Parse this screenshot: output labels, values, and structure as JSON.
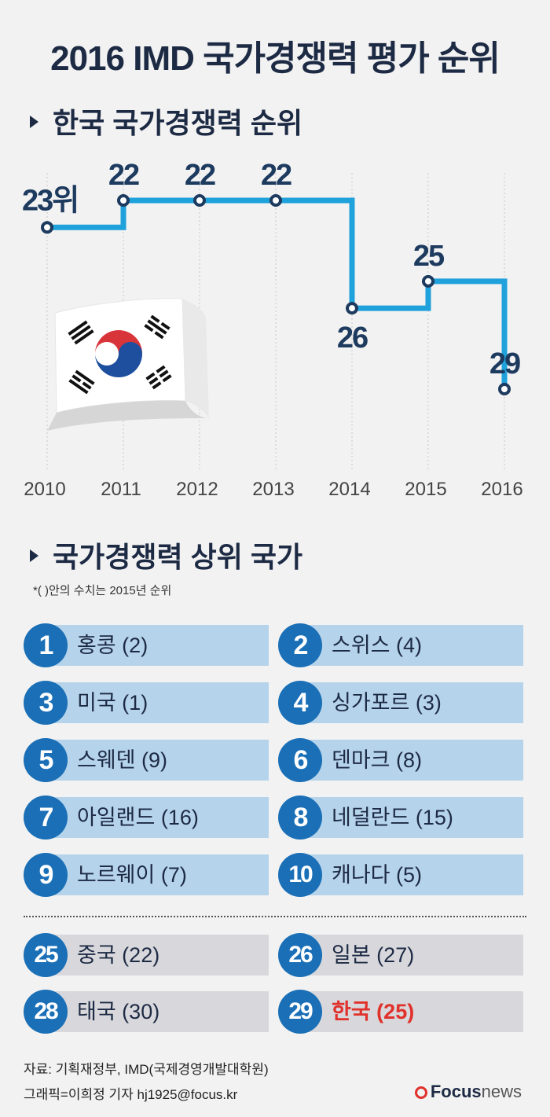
{
  "title": "2016 IMD 국가경쟁력 평가 순위",
  "section1": {
    "heading": "한국 국가경쟁력 순위"
  },
  "chart_data": {
    "type": "line",
    "title": "한국 국가경쟁력 순위",
    "x": [
      "2010",
      "2011",
      "2012",
      "2013",
      "2014",
      "2015",
      "2016"
    ],
    "series": [
      {
        "values": [
          23,
          22,
          22,
          22,
          26,
          25,
          29
        ],
        "labels": [
          "23위",
          "22",
          "22",
          "22",
          "26",
          "25",
          "29"
        ]
      }
    ],
    "step": true,
    "y_inverted": true,
    "ylim": [
      21,
      30
    ],
    "grid": "vertical-dotted",
    "colors": {
      "line": "#1fa1db",
      "marker_stroke": "#1d3a5f",
      "label": "#1d3a5f"
    }
  },
  "section2": {
    "heading": "국가경쟁력 상위 국가",
    "note": "*(  )안의 수치는 2015년 순위"
  },
  "rankings_top": [
    {
      "rank": "1",
      "name": "홍콩 (2)"
    },
    {
      "rank": "2",
      "name": "스위스 (4)"
    },
    {
      "rank": "3",
      "name": " 미국 (1)"
    },
    {
      "rank": "4",
      "name": "싱가포르 (3)"
    },
    {
      "rank": "5",
      "name": "스웨덴 (9)"
    },
    {
      "rank": "6",
      "name": "덴마크 (8)"
    },
    {
      "rank": "7",
      "name": "아일랜드 (16)"
    },
    {
      "rank": "8",
      "name": "네덜란드 (15)"
    },
    {
      "rank": "9",
      "name": "노르웨이 (7)"
    },
    {
      "rank": "10",
      "name": "캐나다 (5)"
    }
  ],
  "rankings_asia": [
    {
      "rank": "25",
      "name": "중국 (22)"
    },
    {
      "rank": "26",
      "name": "일본 (27)"
    },
    {
      "rank": "28",
      "name": "태국 (30)"
    },
    {
      "rank": "29",
      "name": "한국 (25)",
      "highlight_color": "#e0312b"
    }
  ],
  "source": {
    "line1": "자료: 기획재정부, IMD(국제경영개발대학원)",
    "line2": "그래픽=이희정 기자 hj1925@focus.kr"
  },
  "logo": {
    "brand": "Focus",
    "suffix": "news"
  },
  "colors": {
    "badge": "#1a6fb6",
    "bar_top": "#b5d3ea",
    "bar_asia": "#d8d8dc",
    "text": "#1d2a44"
  }
}
